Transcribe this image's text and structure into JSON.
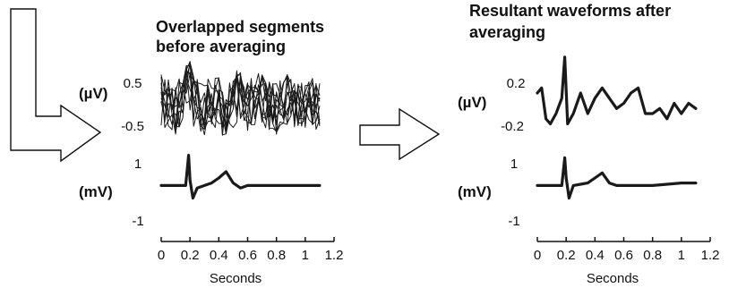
{
  "chart_data": [
    {
      "type": "line",
      "panel": "left",
      "title_lines": [
        "Overlapped segments",
        "before averaging"
      ],
      "xlabel": "Seconds",
      "x_ticks": [
        "0",
        "0.2",
        "0.4",
        "0.6",
        "0.8",
        "1",
        "1.2"
      ],
      "xlim": [
        0,
        1.2
      ],
      "x_range": [
        0,
        1.1
      ],
      "top": {
        "unit": "(µV)",
        "tick_labels": [
          "0.5",
          "-0.5"
        ],
        "tick_values": [
          0.5,
          -0.5
        ],
        "ylim": [
          -0.75,
          0.8
        ],
        "overlapped_segments": 10,
        "series": [
          {
            "x": [
              0.0,
              0.05,
              0.1,
              0.15,
              0.2,
              0.25,
              0.3,
              0.35,
              0.4,
              0.45,
              0.5,
              0.55,
              0.6,
              0.65,
              0.7,
              0.75,
              0.8,
              0.85,
              0.9,
              0.95,
              1.0,
              1.05,
              1.1
            ],
            "y": [
              0.2,
              0.1,
              -0.2,
              0.0,
              0.7,
              0.1,
              -0.2,
              0.2,
              0.1,
              -0.3,
              0.0,
              0.3,
              -0.1,
              0.2,
              0.3,
              0.0,
              -0.2,
              0.1,
              0.2,
              -0.1,
              0.0,
              0.1,
              -0.2
            ]
          }
        ]
      },
      "bottom": {
        "unit": "(mV)",
        "tick_labels": [
          "1",
          "-1"
        ],
        "tick_values": [
          1,
          -1
        ],
        "ylim": [
          -1.3,
          1.4
        ],
        "series": [
          {
            "x": [
              0.0,
              0.1,
              0.17,
              0.19,
              0.2,
              0.22,
              0.25,
              0.3,
              0.35,
              0.4,
              0.45,
              0.5,
              0.55,
              0.6,
              0.7,
              0.8,
              0.9,
              1.0,
              1.1
            ],
            "y": [
              0.0,
              0.0,
              0.0,
              1.2,
              0.2,
              -0.5,
              -0.1,
              0.0,
              0.1,
              0.3,
              0.55,
              0.1,
              -0.1,
              0.0,
              0.0,
              0.0,
              0.0,
              0.0,
              0.0
            ]
          }
        ]
      }
    },
    {
      "type": "line",
      "panel": "right",
      "title_lines": [
        "Resultant waveforms after",
        "averaging"
      ],
      "xlabel": "Seconds",
      "x_ticks": [
        "0",
        "0.2",
        "0.4",
        "0.6",
        "0.8",
        "1",
        "1.2"
      ],
      "xlim": [
        0,
        1.2
      ],
      "x_range": [
        0,
        1.1
      ],
      "top": {
        "unit": "(µV)",
        "tick_labels": [
          "0.2",
          "-0.2"
        ],
        "tick_values": [
          0.2,
          -0.2
        ],
        "ylim": [
          -0.3,
          0.5
        ],
        "series": [
          {
            "x": [
              0.0,
              0.03,
              0.06,
              0.09,
              0.13,
              0.17,
              0.19,
              0.21,
              0.25,
              0.3,
              0.35,
              0.4,
              0.45,
              0.5,
              0.55,
              0.6,
              0.65,
              0.7,
              0.75,
              0.8,
              0.85,
              0.9,
              0.95,
              1.0,
              1.05,
              1.1
            ],
            "y": [
              0.1,
              0.15,
              -0.15,
              -0.2,
              -0.1,
              0.05,
              0.45,
              -0.2,
              -0.1,
              0.1,
              -0.1,
              0.05,
              0.15,
              0.05,
              -0.05,
              0.0,
              0.1,
              0.15,
              -0.1,
              -0.1,
              -0.05,
              -0.15,
              0.0,
              -0.1,
              0.0,
              -0.05
            ]
          }
        ]
      },
      "bottom": {
        "unit": "(mV)",
        "tick_labels": [
          "1",
          "-1"
        ],
        "tick_values": [
          1,
          -1
        ],
        "ylim": [
          -1.3,
          1.4
        ],
        "series": [
          {
            "x": [
              0.0,
              0.1,
              0.17,
              0.19,
              0.2,
              0.22,
              0.25,
              0.3,
              0.35,
              0.4,
              0.45,
              0.5,
              0.55,
              0.6,
              0.7,
              0.8,
              0.9,
              1.0,
              1.1
            ],
            "y": [
              0.0,
              0.0,
              0.0,
              1.1,
              0.3,
              -0.5,
              0.0,
              0.05,
              0.1,
              0.3,
              0.5,
              0.1,
              0.0,
              0.0,
              0.0,
              0.0,
              0.05,
              0.1,
              0.1
            ]
          }
        ]
      }
    }
  ]
}
